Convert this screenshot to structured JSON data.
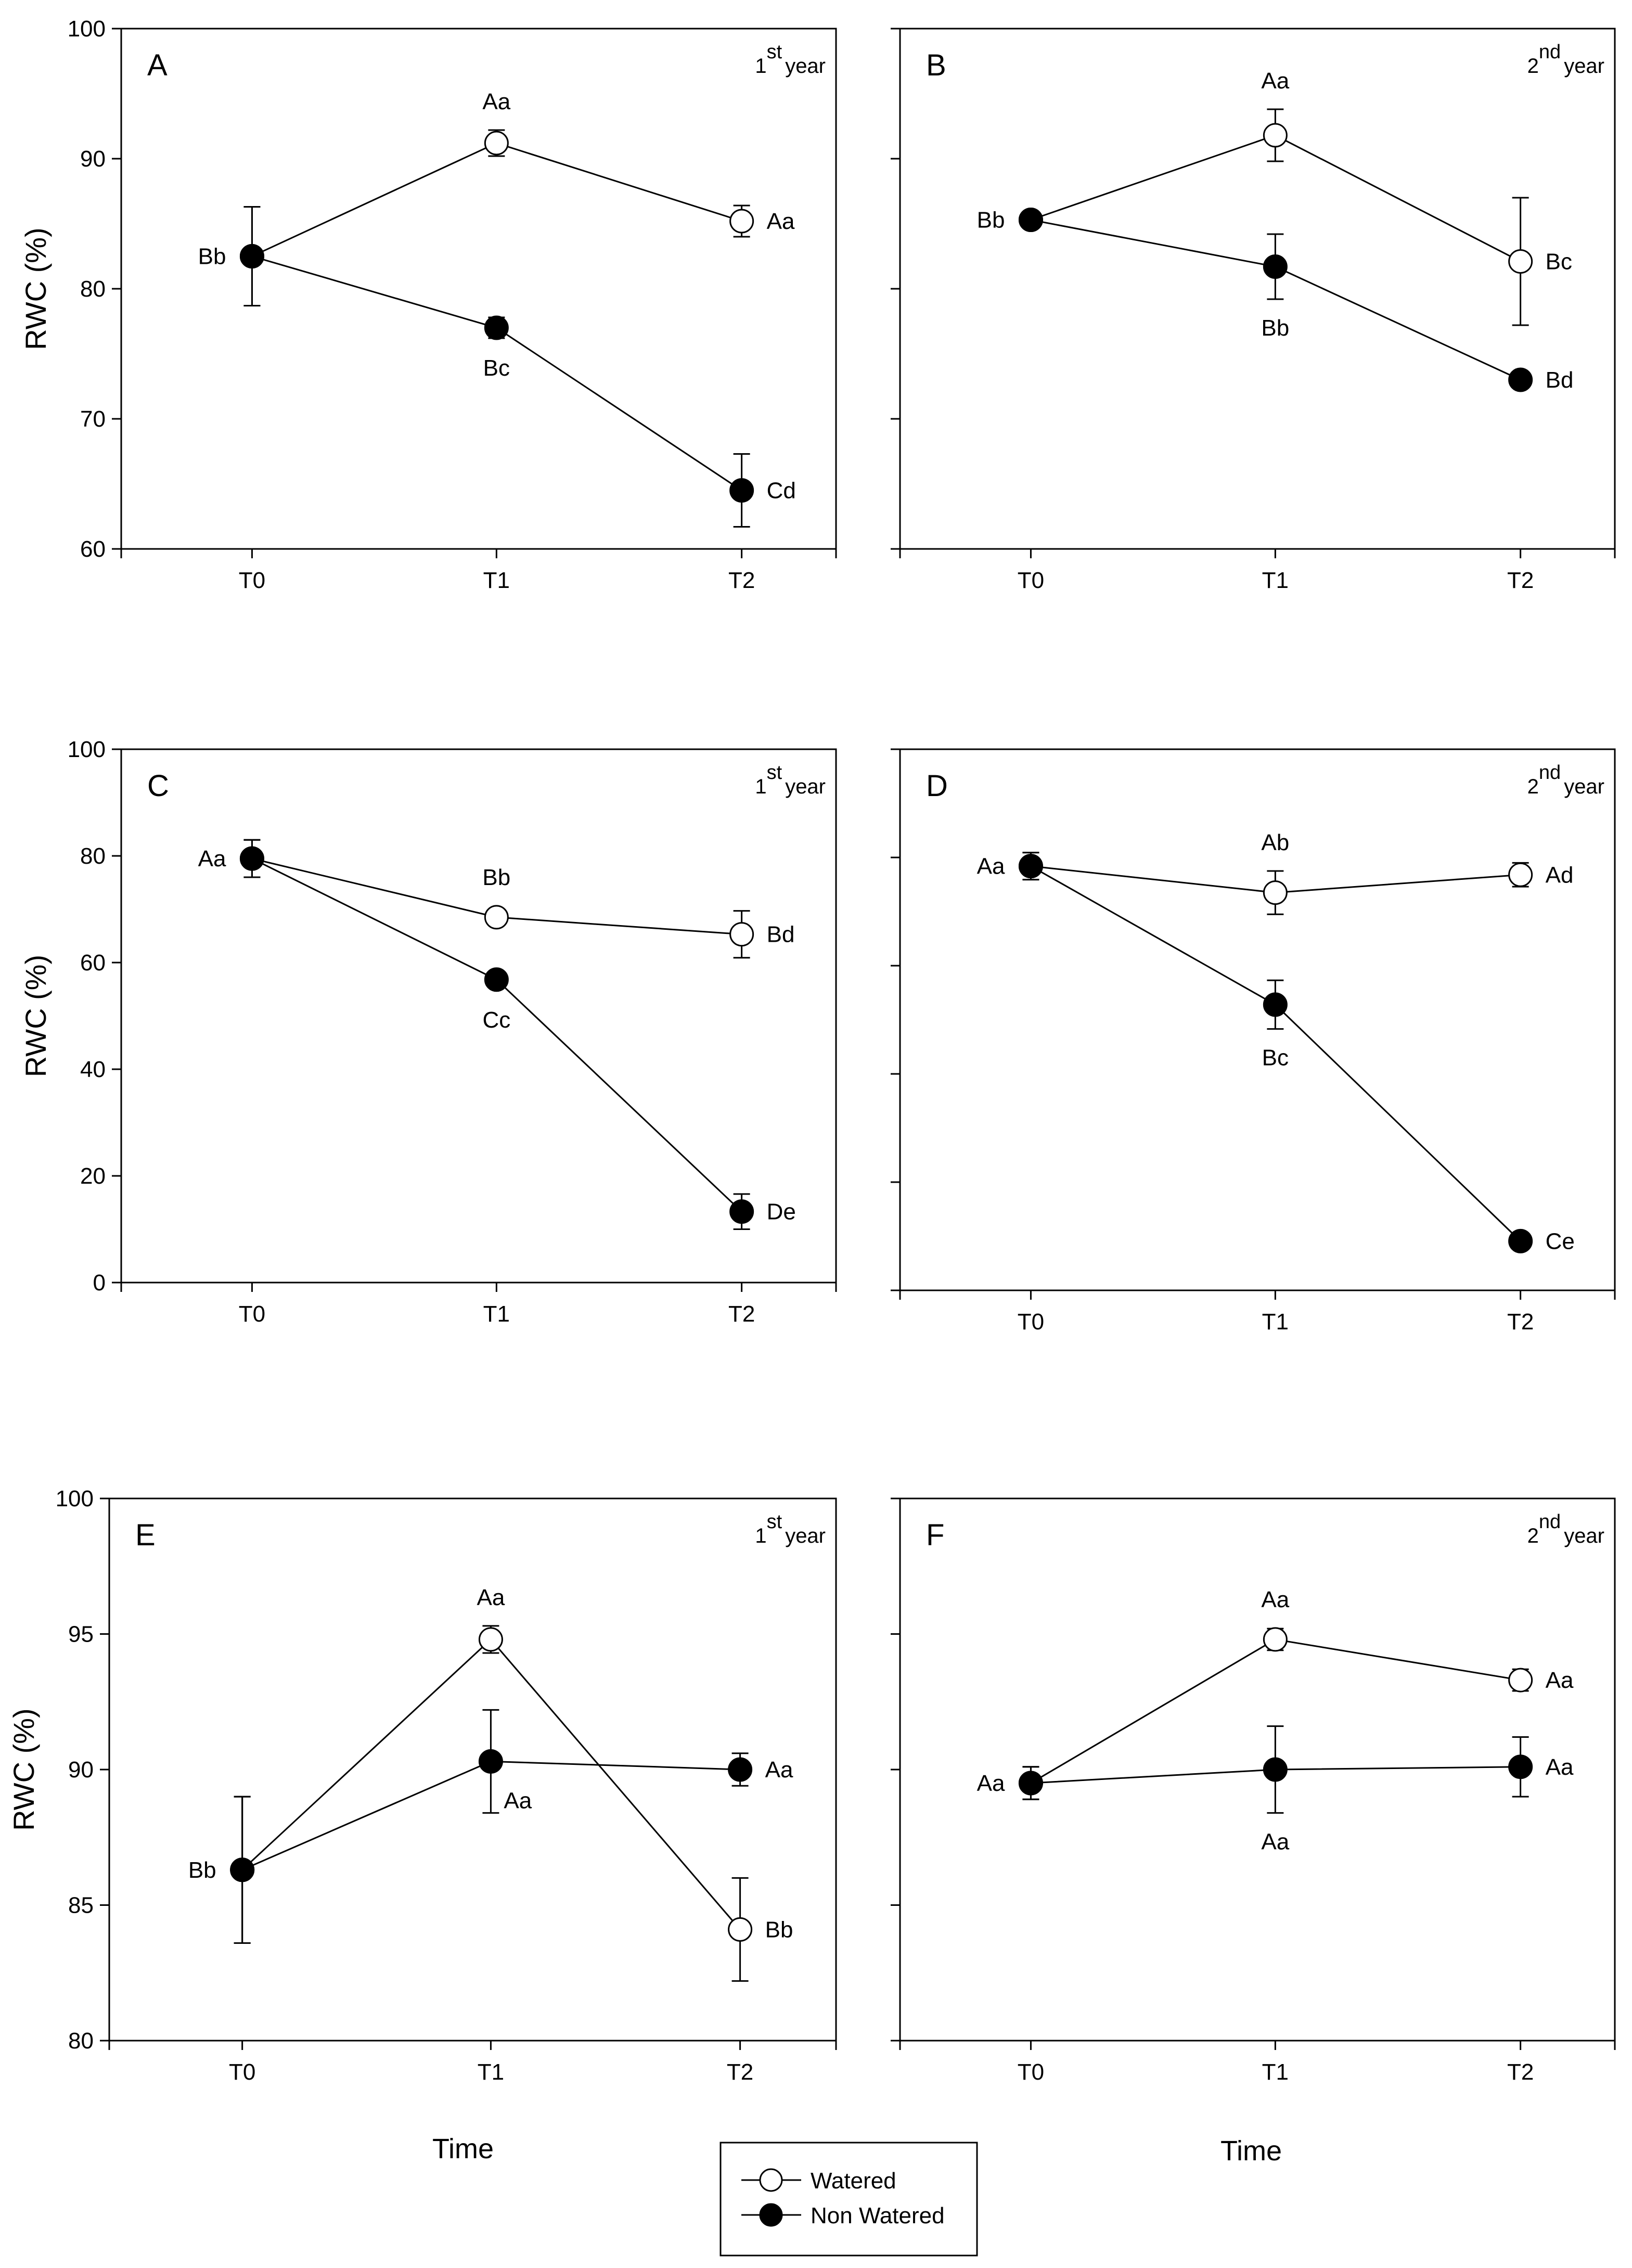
{
  "colors": {
    "watered_fill": "#ffffff",
    "nonwatered_fill": "#000000",
    "stroke": "#000000"
  },
  "legend": {
    "watered": "Watered",
    "non_watered": "Non Watered"
  },
  "x_titles": {
    "left": "Time",
    "right": "Time"
  },
  "chart_data": [
    {
      "panel": "A",
      "type": "line",
      "ylabel": "RWC (%)",
      "year_num": "1",
      "year_sup": "st",
      "year_word": "year",
      "categories": [
        "T0",
        "T1",
        "T2"
      ],
      "ylim": [
        60,
        100
      ],
      "yticks": [
        60,
        70,
        80,
        90,
        100
      ],
      "ytick_labels": true,
      "series": [
        {
          "name": "Watered",
          "values": [
            82.5,
            91.2,
            85.2
          ],
          "errors": [
            3.8,
            1.0,
            1.2
          ],
          "labels": [
            "",
            "Aa",
            "Aa"
          ]
        },
        {
          "name": "Non Watered",
          "values": [
            82.5,
            77.0,
            64.5
          ],
          "errors": [
            3.8,
            0.8,
            2.8
          ],
          "labels": [
            "Bb",
            "Bc",
            "Cd"
          ]
        }
      ]
    },
    {
      "panel": "B",
      "type": "line",
      "ylabel": "",
      "year_num": "2",
      "year_sup": "nd",
      "year_word": "year",
      "categories": [
        "T0",
        "T1",
        "T2"
      ],
      "ylim": [
        60,
        100
      ],
      "yticks": [
        60,
        70,
        80,
        90,
        100
      ],
      "ytick_labels": false,
      "series": [
        {
          "name": "Watered",
          "values": [
            85.3,
            91.8,
            82.1
          ],
          "errors": [
            0.4,
            2.0,
            4.9
          ],
          "labels": [
            "",
            "Aa",
            "Bc"
          ]
        },
        {
          "name": "Non Watered",
          "values": [
            85.3,
            81.7,
            73.0
          ],
          "errors": [
            0.4,
            2.5,
            0.4
          ],
          "labels": [
            "Bb",
            "Bb",
            "Bd"
          ]
        }
      ]
    },
    {
      "panel": "C",
      "type": "line",
      "ylabel": "RWC (%)",
      "year_num": "1",
      "year_sup": "st",
      "year_word": "year",
      "categories": [
        "T0",
        "T1",
        "T2"
      ],
      "ylim": [
        0,
        100
      ],
      "yticks": [
        0,
        20,
        40,
        60,
        80,
        100
      ],
      "ytick_labels": true,
      "series": [
        {
          "name": "Watered",
          "values": [
            79.5,
            68.5,
            65.3
          ],
          "errors": [
            3.5,
            1.2,
            4.4
          ],
          "labels": [
            "",
            "Bb",
            "Bd"
          ]
        },
        {
          "name": "Non Watered",
          "values": [
            79.5,
            56.8,
            13.3
          ],
          "errors": [
            3.5,
            1.2,
            3.3
          ],
          "labels": [
            "Aa",
            "Cc",
            "De"
          ]
        }
      ]
    },
    {
      "panel": "D",
      "type": "line",
      "ylabel": "",
      "year_num": "2",
      "year_sup": "nd",
      "year_word": "year",
      "categories": [
        "T0",
        "T1",
        "T2"
      ],
      "ylim": [
        0,
        100
      ],
      "yticks": [
        0,
        20,
        40,
        60,
        80,
        100
      ],
      "ytick_labels": false,
      "series": [
        {
          "name": "Watered",
          "values": [
            78.4,
            73.5,
            76.8
          ],
          "errors": [
            2.5,
            4.0,
            2.2
          ],
          "labels": [
            "",
            "Ab",
            "Ad"
          ]
        },
        {
          "name": "Non Watered",
          "values": [
            78.4,
            52.8,
            9.1
          ],
          "errors": [
            2.5,
            4.5,
            1.2
          ],
          "labels": [
            "Aa",
            "Bc",
            "Ce"
          ]
        }
      ]
    },
    {
      "panel": "E",
      "type": "line",
      "ylabel": "RWC (%)",
      "year_num": "1",
      "year_sup": "st",
      "year_word": "year",
      "categories": [
        "T0",
        "T1",
        "T2"
      ],
      "ylim": [
        80,
        100
      ],
      "yticks": [
        80,
        85,
        90,
        95,
        100
      ],
      "ytick_labels": true,
      "series": [
        {
          "name": "Watered",
          "values": [
            86.3,
            94.8,
            84.1
          ],
          "errors": [
            2.7,
            0.5,
            1.9
          ],
          "labels": [
            "",
            "Aa",
            "Bb"
          ]
        },
        {
          "name": "Non Watered",
          "values": [
            86.3,
            90.3,
            90.0
          ],
          "errors": [
            2.7,
            1.9,
            0.6
          ],
          "labels": [
            "Bb",
            "Aa",
            "Aa"
          ]
        }
      ]
    },
    {
      "panel": "F",
      "type": "line",
      "ylabel": "",
      "year_num": "2",
      "year_sup": "nd",
      "year_word": "year",
      "categories": [
        "T0",
        "T1",
        "T2"
      ],
      "ylim": [
        80,
        100
      ],
      "yticks": [
        80,
        85,
        90,
        95,
        100
      ],
      "ytick_labels": false,
      "series": [
        {
          "name": "Watered",
          "values": [
            89.5,
            94.8,
            93.3
          ],
          "errors": [
            0.6,
            0.4,
            0.4
          ],
          "labels": [
            "",
            "Aa",
            "Aa"
          ]
        },
        {
          "name": "Non Watered",
          "values": [
            89.5,
            90.0,
            90.1
          ],
          "errors": [
            0.6,
            1.6,
            1.1
          ],
          "labels": [
            "Aa",
            "Aa",
            "Aa"
          ]
        }
      ]
    }
  ]
}
